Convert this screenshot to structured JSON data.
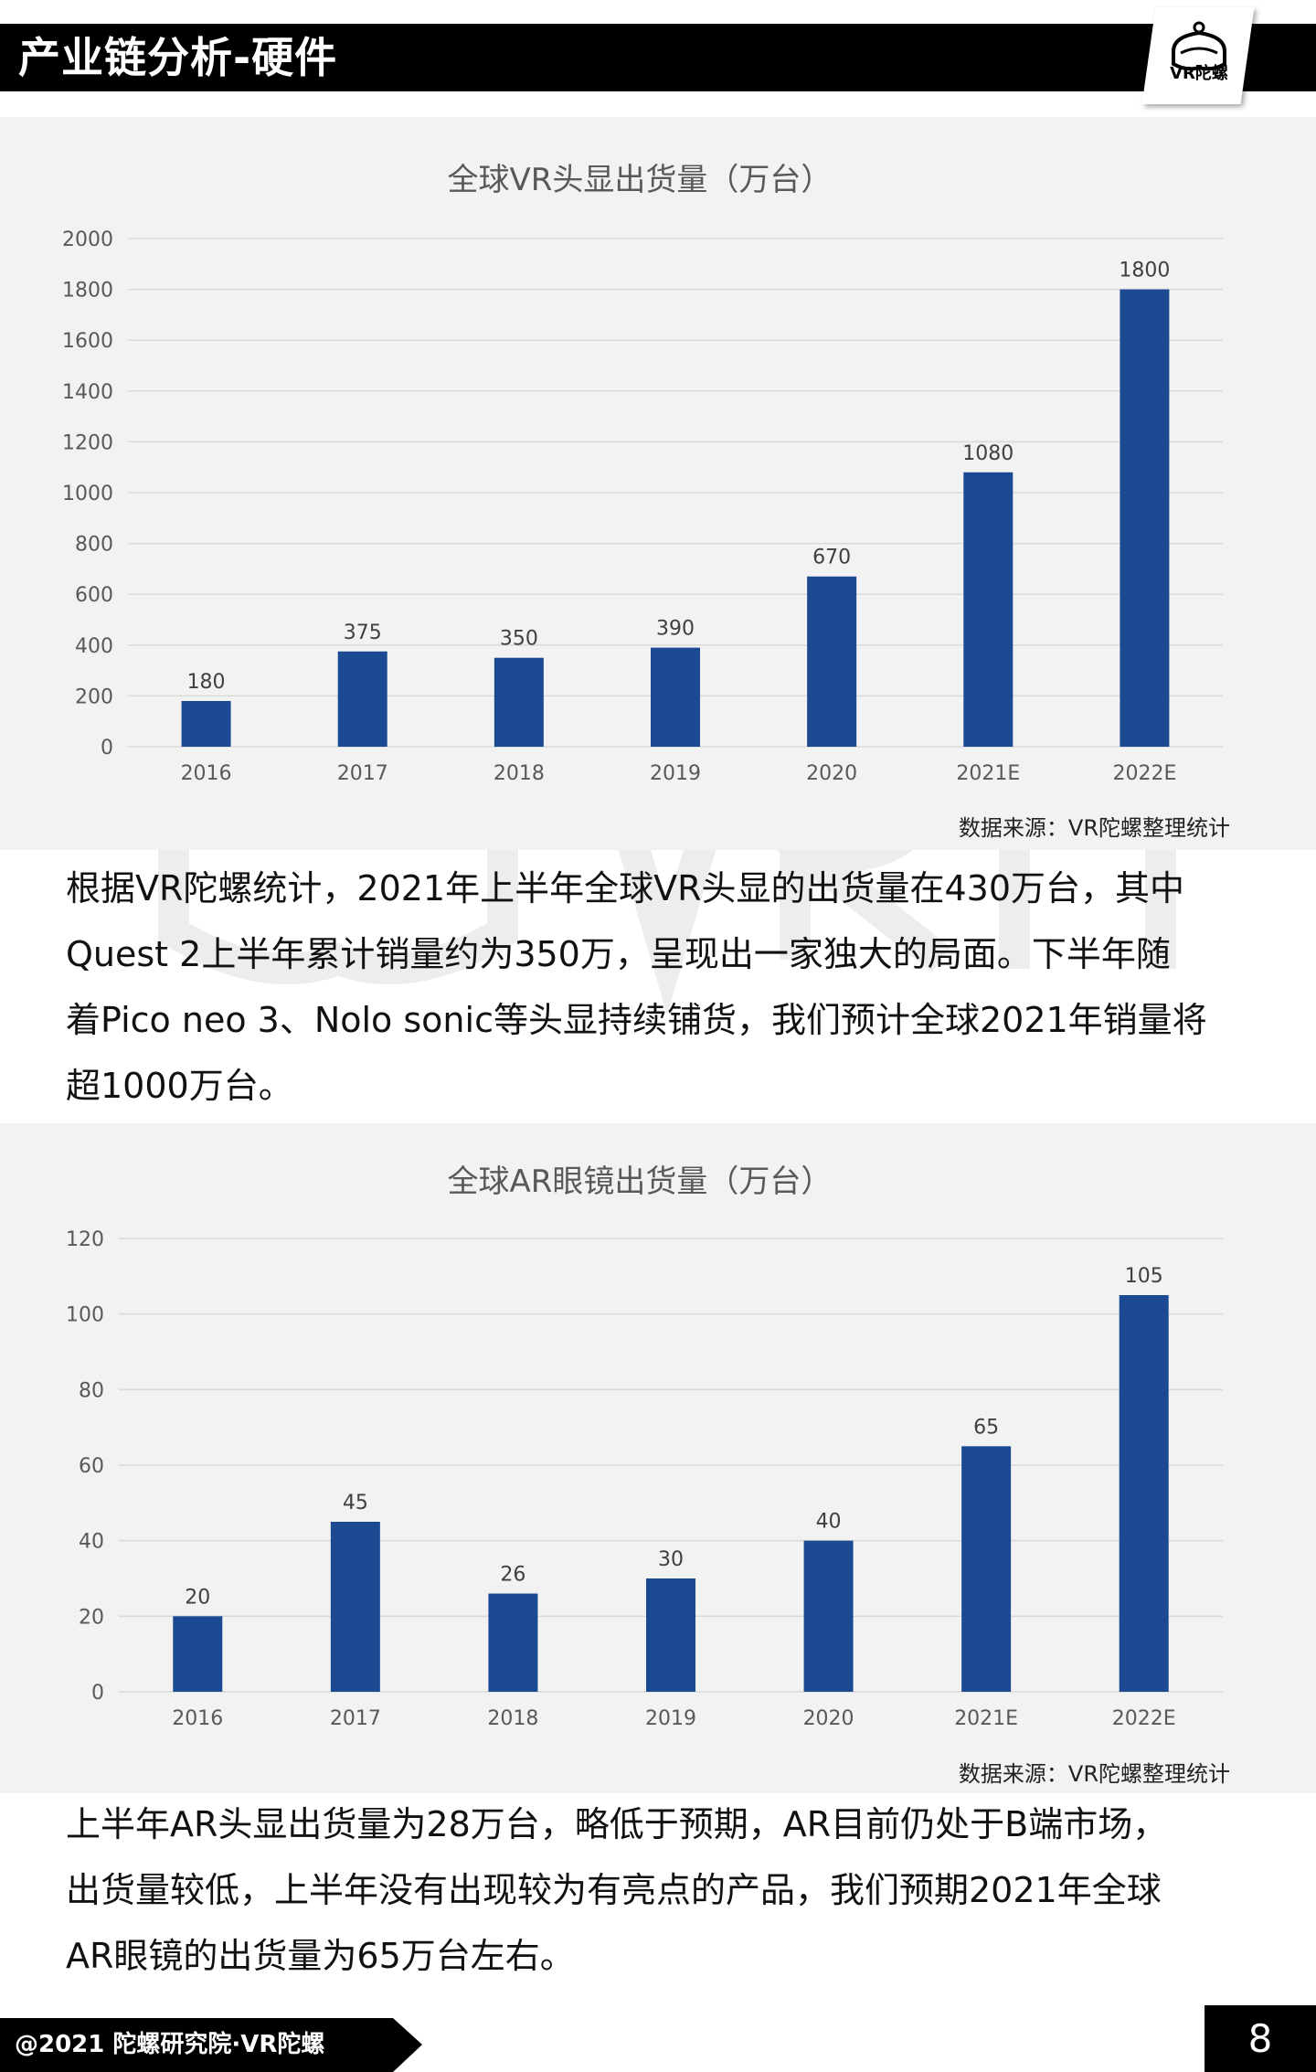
{
  "header": {
    "title": "产业链分析-硬件",
    "logo_text": "VR陀螺"
  },
  "colors": {
    "bar": "#1b4a93",
    "header_bg": "#000000",
    "panel_bg": "#f2f2f2",
    "grid": "#d9d9d9"
  },
  "chart_data": [
    {
      "type": "bar",
      "title": "全球VR头显出货量（万台）",
      "categories": [
        "2016",
        "2017",
        "2018",
        "2019",
        "2020",
        "2021E",
        "2022E"
      ],
      "values": [
        180,
        375,
        350,
        390,
        670,
        1080,
        1800
      ],
      "ylim": [
        0,
        2000
      ],
      "yticks": [
        0,
        200,
        400,
        600,
        800,
        1000,
        1200,
        1400,
        1600,
        1800,
        2000
      ],
      "grid": true,
      "legend": "none",
      "xlabel": "",
      "ylabel": ""
    },
    {
      "type": "bar",
      "title": "全球AR眼镜出货量（万台）",
      "categories": [
        "2016",
        "2017",
        "2018",
        "2019",
        "2020",
        "2021E",
        "2022E"
      ],
      "values": [
        20,
        45,
        26,
        30,
        40,
        65,
        105
      ],
      "ylim": [
        0,
        120
      ],
      "yticks": [
        0,
        20,
        40,
        60,
        80,
        100,
        120
      ],
      "grid": true,
      "legend": "none",
      "xlabel": "",
      "ylabel": ""
    }
  ],
  "sources": [
    "数据来源：VR陀螺整理统计",
    "数据来源：VR陀螺整理统计"
  ],
  "paragraphs": {
    "p1": [
      "根据VR陀螺统计，2021年上半年全球VR头显的出货量在430万台，其中",
      "Quest 2上半年累计销量约为350万，呈现出一家独大的局面。下半年随",
      "着Pico neo 3、Nolo sonic等头显持续铺货，我们预计全球2021年销量将",
      "超1000万台。"
    ],
    "p2": [
      "上半年AR头显出货量为28万台，略低于预期，AR目前仍处于B端市场，",
      "出货量较低，上半年没有出现较为有亮点的产品，我们预期2021年全球",
      "AR眼镜的出货量为65万台左右。"
    ]
  },
  "footer": {
    "copyright": "@2021 陀螺研究院·VR陀螺",
    "page_number": "8"
  }
}
